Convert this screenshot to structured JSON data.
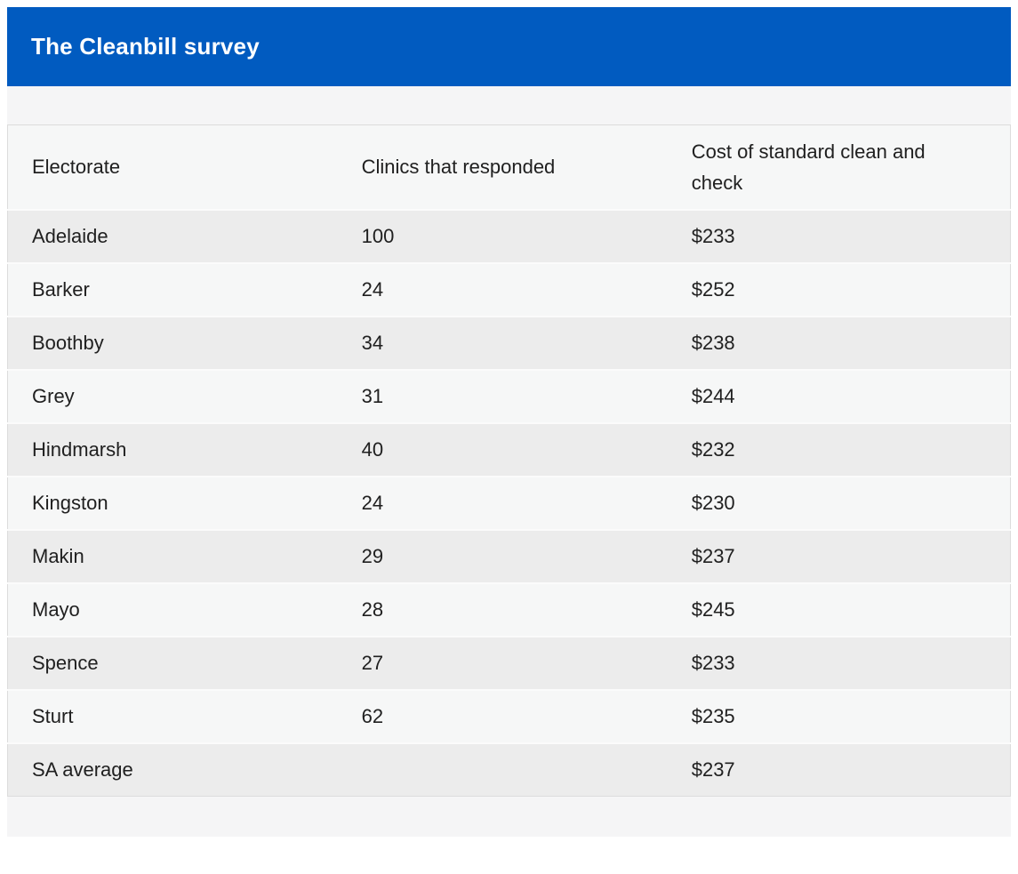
{
  "header": {
    "title": "The Cleanbill survey"
  },
  "colors": {
    "accent_blue": "#015bc0",
    "title_text": "#ffffff",
    "body_background": "#f5f5f6",
    "row_dark": "#ececec",
    "row_light": "#f6f7f7",
    "table_border": "#dcdcdc",
    "cell_text": "#202020"
  },
  "chart_data": {
    "type": "table",
    "title": "The Cleanbill survey",
    "columns": [
      "Electorate",
      "Clinics that responded",
      "Cost of standard clean and check"
    ],
    "rows": [
      [
        "Adelaide",
        "100",
        "$233"
      ],
      [
        "Barker",
        "24",
        "$252"
      ],
      [
        "Boothby",
        "34",
        "$238"
      ],
      [
        "Grey",
        "31",
        "$244"
      ],
      [
        "Hindmarsh",
        "40",
        "$232"
      ],
      [
        "Kingston",
        "24",
        "$230"
      ],
      [
        "Makin",
        "29",
        "$237"
      ],
      [
        "Mayo",
        "28",
        "$245"
      ],
      [
        "Spence",
        "27",
        "$233"
      ],
      [
        "Sturt",
        "62",
        "$235"
      ],
      [
        "SA average",
        "",
        "$237"
      ]
    ]
  }
}
